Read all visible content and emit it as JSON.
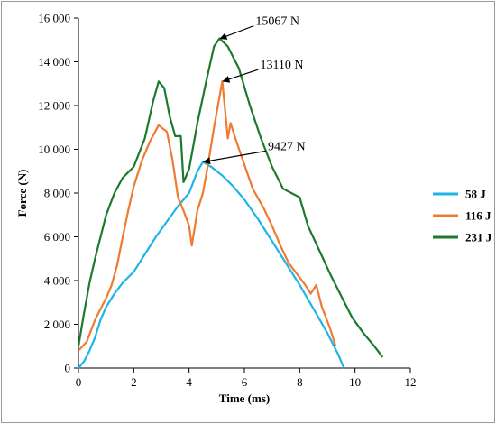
{
  "chart_data": {
    "type": "line",
    "xlabel": "Time (ms)",
    "ylabel": "Force (N)",
    "xlim": [
      0,
      12
    ],
    "ylim": [
      0,
      16000
    ],
    "x_ticks": [
      "0",
      "2",
      "4",
      "6",
      "8",
      "10",
      "12"
    ],
    "y_ticks": [
      "0",
      "2 000",
      "4 000",
      "6 000",
      "8 000",
      "10 000",
      "12 000",
      "14 000",
      "16 000"
    ],
    "legend_position": "right",
    "grid": false,
    "series": [
      {
        "name": "58 J",
        "color": "#1fb4e8",
        "points": [
          [
            0,
            0
          ],
          [
            0.2,
            300
          ],
          [
            0.4,
            800
          ],
          [
            0.6,
            1400
          ],
          [
            0.8,
            2200
          ],
          [
            1.0,
            2800
          ],
          [
            1.3,
            3400
          ],
          [
            1.6,
            3900
          ],
          [
            2.0,
            4400
          ],
          [
            2.4,
            5200
          ],
          [
            2.8,
            6000
          ],
          [
            3.2,
            6700
          ],
          [
            3.6,
            7400
          ],
          [
            4.0,
            8000
          ],
          [
            4.3,
            9000
          ],
          [
            4.5,
            9427
          ],
          [
            4.8,
            9200
          ],
          [
            5.2,
            8800
          ],
          [
            5.6,
            8300
          ],
          [
            6.0,
            7700
          ],
          [
            6.5,
            6800
          ],
          [
            7.0,
            5800
          ],
          [
            7.5,
            4800
          ],
          [
            8.0,
            3800
          ],
          [
            8.5,
            2700
          ],
          [
            9.0,
            1600
          ],
          [
            9.4,
            600
          ],
          [
            9.6,
            0
          ]
        ]
      },
      {
        "name": "116 J",
        "color": "#ef7a32",
        "points": [
          [
            0,
            800
          ],
          [
            0.3,
            1200
          ],
          [
            0.6,
            2200
          ],
          [
            0.8,
            2700
          ],
          [
            1.0,
            3200
          ],
          [
            1.2,
            3800
          ],
          [
            1.4,
            4700
          ],
          [
            1.6,
            6000
          ],
          [
            1.8,
            7200
          ],
          [
            2.0,
            8300
          ],
          [
            2.3,
            9500
          ],
          [
            2.6,
            10400
          ],
          [
            2.9,
            11100
          ],
          [
            3.2,
            10800
          ],
          [
            3.4,
            9500
          ],
          [
            3.6,
            7800
          ],
          [
            3.8,
            7200
          ],
          [
            4.0,
            6500
          ],
          [
            4.1,
            5600
          ],
          [
            4.3,
            7200
          ],
          [
            4.5,
            8000
          ],
          [
            4.7,
            9400
          ],
          [
            4.9,
            11000
          ],
          [
            5.2,
            13110
          ],
          [
            5.4,
            10500
          ],
          [
            5.5,
            11200
          ],
          [
            5.7,
            10400
          ],
          [
            6.0,
            9300
          ],
          [
            6.3,
            8200
          ],
          [
            6.7,
            7300
          ],
          [
            7.0,
            6500
          ],
          [
            7.3,
            5600
          ],
          [
            7.6,
            4800
          ],
          [
            7.9,
            4300
          ],
          [
            8.2,
            3800
          ],
          [
            8.4,
            3400
          ],
          [
            8.6,
            3800
          ],
          [
            8.8,
            2800
          ],
          [
            9.1,
            1800
          ],
          [
            9.3,
            1000
          ]
        ]
      },
      {
        "name": "231 J",
        "color": "#1c7a2e",
        "points": [
          [
            0,
            1000
          ],
          [
            0.2,
            2500
          ],
          [
            0.4,
            3900
          ],
          [
            0.6,
            5000
          ],
          [
            0.8,
            6000
          ],
          [
            1.0,
            7000
          ],
          [
            1.3,
            8000
          ],
          [
            1.6,
            8700
          ],
          [
            2.0,
            9200
          ],
          [
            2.4,
            10500
          ],
          [
            2.7,
            12200
          ],
          [
            2.9,
            13100
          ],
          [
            3.1,
            12800
          ],
          [
            3.3,
            11500
          ],
          [
            3.5,
            10600
          ],
          [
            3.7,
            10600
          ],
          [
            3.8,
            8500
          ],
          [
            4.0,
            9100
          ],
          [
            4.3,
            11200
          ],
          [
            4.6,
            13000
          ],
          [
            4.9,
            14700
          ],
          [
            5.1,
            15067
          ],
          [
            5.4,
            14700
          ],
          [
            5.8,
            13700
          ],
          [
            6.2,
            12000
          ],
          [
            6.6,
            10500
          ],
          [
            7.0,
            9200
          ],
          [
            7.4,
            8200
          ],
          [
            7.7,
            8000
          ],
          [
            8.0,
            7800
          ],
          [
            8.3,
            6500
          ],
          [
            8.7,
            5400
          ],
          [
            9.1,
            4300
          ],
          [
            9.5,
            3300
          ],
          [
            9.9,
            2300
          ],
          [
            10.3,
            1600
          ],
          [
            10.7,
            1000
          ],
          [
            11.0,
            500
          ]
        ]
      }
    ],
    "annotations": [
      {
        "text": "15067 N",
        "x": 5.1,
        "y": 15067
      },
      {
        "text": "13110 N",
        "x": 5.2,
        "y": 13110
      },
      {
        "text": "9427 N",
        "x": 4.5,
        "y": 9427
      }
    ]
  }
}
